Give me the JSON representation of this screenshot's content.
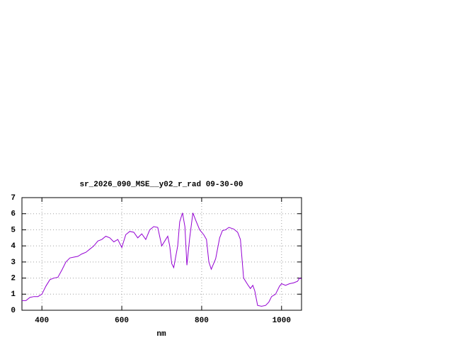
{
  "chart_data": {
    "type": "line",
    "title": "sr_2026_090_MSE__y02_r_rad 09-30-00",
    "x_label": "nm",
    "color": "#9400d3",
    "grid": true,
    "xlim": [
      350,
      1050
    ],
    "ylim": [
      0,
      7
    ],
    "xticks": [
      400,
      600,
      800,
      1000
    ],
    "yticks": [
      0,
      1,
      2,
      3,
      4,
      5,
      6,
      7
    ],
    "x": [
      350,
      360,
      370,
      380,
      390,
      400,
      410,
      420,
      430,
      440,
      450,
      460,
      470,
      480,
      490,
      500,
      510,
      520,
      530,
      540,
      550,
      560,
      570,
      580,
      590,
      600,
      610,
      620,
      630,
      640,
      650,
      660,
      670,
      680,
      690,
      700,
      710,
      715,
      720,
      725,
      730,
      740,
      745,
      752,
      758,
      763,
      770,
      778,
      785,
      795,
      805,
      812,
      818,
      824,
      835,
      845,
      852,
      860,
      868,
      880,
      890,
      897,
      905,
      915,
      922,
      928,
      933,
      940,
      950,
      960,
      968,
      975,
      985,
      995,
      1000,
      1010,
      1020,
      1030,
      1040,
      1045,
      1050
    ],
    "values": [
      0.6,
      0.6,
      0.8,
      0.85,
      0.85,
      1.0,
      1.5,
      1.9,
      2.0,
      2.05,
      2.5,
      3.0,
      3.25,
      3.3,
      3.35,
      3.5,
      3.6,
      3.8,
      4.0,
      4.3,
      4.4,
      4.6,
      4.5,
      4.25,
      4.4,
      3.9,
      4.7,
      4.9,
      4.85,
      4.5,
      4.75,
      4.4,
      5.0,
      5.2,
      5.15,
      4.0,
      4.4,
      4.6,
      4.0,
      2.9,
      2.65,
      4.0,
      5.5,
      6.05,
      5.2,
      2.8,
      4.5,
      6.05,
      5.6,
      5.0,
      4.7,
      4.4,
      3.0,
      2.55,
      3.2,
      4.5,
      4.95,
      5.0,
      5.15,
      5.05,
      4.85,
      4.4,
      2.0,
      1.6,
      1.35,
      1.55,
      1.2,
      0.3,
      0.25,
      0.3,
      0.5,
      0.85,
      1.0,
      1.5,
      1.65,
      1.55,
      1.65,
      1.7,
      1.8,
      2.0,
      1.95
    ]
  }
}
